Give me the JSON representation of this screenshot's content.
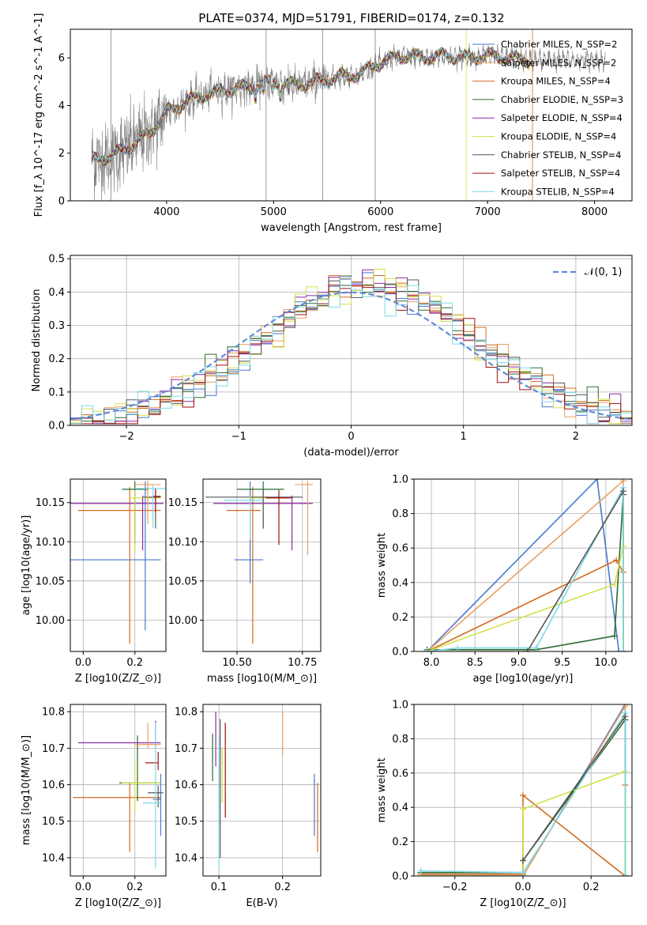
{
  "figure_title": "PLATE=0374, MJD=51791, FIBERID=0174, z=0.132",
  "colors": {
    "data": "#808080",
    "series": [
      "#4878cf",
      "#e8a060",
      "#d2691e",
      "#2e6b2e",
      "#8b2aa8",
      "#d4e04a",
      "#555555",
      "#a01010",
      "#7fd8e8"
    ]
  },
  "chart_data": [
    {
      "id": "spectrum",
      "type": "line",
      "xlabel": "wavelength [Angstrom, rest frame]",
      "ylabel": "Flux [f_λ 10^-17 erg cm^-2 s^-1 A^-1]",
      "xlim": [
        3100,
        8350
      ],
      "ylim": [
        0,
        7.2
      ],
      "xticks": [
        4000,
        5000,
        6000,
        7000,
        8000
      ],
      "yticks": [
        0,
        2,
        4,
        6
      ],
      "grid": false,
      "legend_position": "right",
      "legend": [
        "Chabrier MILES, N_SSP=2",
        "Salpeter MILES, N_SSP=2",
        "Kroupa MILES, N_SSP=4",
        "Chabrier ELODIE, N_SSP=3",
        "Salpeter ELODIE, N_SSP=4",
        "Kroupa ELODIE, N_SSP=4",
        "Chabrier STELIB, N_SSP=4",
        "Salpeter STELIB, N_SSP=4",
        "Kroupa STELIB, N_SSP=4"
      ],
      "model_continuum": {
        "x": [
          3300,
          3500,
          3700,
          3850,
          4000,
          4200,
          4400,
          4600,
          4800,
          5000,
          5200,
          5400,
          5600,
          5800,
          6000,
          6200,
          6400,
          6600,
          6800,
          7000,
          7200,
          7400
        ],
        "y": [
          1.7,
          1.9,
          2.4,
          2.9,
          3.7,
          4.2,
          4.5,
          4.7,
          4.8,
          5.0,
          4.85,
          5.0,
          5.2,
          5.3,
          5.8,
          6.1,
          6.0,
          6.1,
          6.0,
          6.1,
          6.0,
          5.9
        ]
      }
    },
    {
      "id": "residual-histogram",
      "type": "histogram",
      "xlabel": "(data-model)/error",
      "ylabel": "Normed distribution",
      "xlim": [
        -2.5,
        2.5
      ],
      "ylim": [
        0,
        0.51
      ],
      "xticks": [
        -2,
        -1,
        0,
        1,
        2
      ],
      "yticks": [
        0.0,
        0.1,
        0.2,
        0.3,
        0.4,
        0.5
      ],
      "grid": true,
      "legend_position": "top-right",
      "reference_curve": {
        "name": "𝒩(0, 1)",
        "mean": 0,
        "sigma": 1
      },
      "bin_width": 0.1
    },
    {
      "id": "age-vs-Z",
      "type": "scatter",
      "xlabel": "Z [log10(Z/Z_⊙)]",
      "ylabel": "age  [log10(age/yr)]",
      "xlim": [
        -0.05,
        0.32
      ],
      "ylim": [
        9.96,
        10.18
      ],
      "xticks": [
        0.0,
        0.2
      ],
      "yticks": [
        10.0,
        10.05,
        10.1,
        10.15
      ],
      "grid": true,
      "points": [
        {
          "x": 0.24,
          "y": 10.077,
          "xerr": [
            0.3,
            0.06
          ],
          "yerr": [
            0.09,
            0.1
          ],
          "color": 0
        },
        {
          "x": 0.18,
          "y": 10.14,
          "xerr": [
            0.2,
            0.12
          ],
          "yerr": [
            0.17,
            0.03
          ],
          "color": 2
        },
        {
          "x": 0.2,
          "y": 10.167,
          "xerr": [
            0.05,
            0.05
          ],
          "yerr": [
            0.07,
            0.01
          ],
          "color": 3
        },
        {
          "x": 0.23,
          "y": 10.149,
          "xerr": [
            0.28,
            0.08
          ],
          "yerr": [
            0.06,
            0.01
          ],
          "color": 4
        },
        {
          "x": 0.2,
          "y": 10.156,
          "xerr": [
            0.02,
            0.1
          ],
          "yerr": [
            0.07,
            0.01
          ],
          "color": 5
        },
        {
          "x": 0.28,
          "y": 10.157,
          "xerr": [
            0.05,
            0.02
          ],
          "yerr": [
            0.04,
            0.01
          ],
          "color": 6
        },
        {
          "x": 0.28,
          "y": 10.158,
          "xerr": [
            0.01,
            0.02
          ],
          "yerr": [
            0.02,
            0.01
          ],
          "color": 7
        },
        {
          "x": 0.27,
          "y": 10.168,
          "xerr": [
            0.07,
            0.05
          ],
          "yerr": [
            0.05,
            0.005
          ],
          "color": 8
        },
        {
          "x": 0.25,
          "y": 10.173,
          "xerr": [
            0.05,
            0.05
          ],
          "yerr": [
            0.05,
            0.005
          ],
          "color": 1
        }
      ]
    },
    {
      "id": "age-vs-mass",
      "type": "scatter",
      "xlabel": "mass [log10(M/M_⊙)]",
      "ylabel": "",
      "xlim": [
        10.37,
        10.82
      ],
      "ylim": [
        9.96,
        10.18
      ],
      "xticks": [
        10.5,
        10.75
      ],
      "yticks": [
        10.0,
        10.05,
        10.1,
        10.15
      ],
      "grid": true,
      "points": [
        {
          "x": 10.55,
          "y": 10.077,
          "xerr": [
            0.06,
            0.05
          ],
          "yerr": [
            0.03,
            0.1
          ],
          "color": 0
        },
        {
          "x": 10.56,
          "y": 10.14,
          "xerr": [
            0.1,
            0.03
          ],
          "yerr": [
            0.17,
            0.03
          ],
          "color": 2
        },
        {
          "x": 10.6,
          "y": 10.167,
          "xerr": [
            0.1,
            0.08
          ],
          "yerr": [
            0.05,
            0.01
          ],
          "color": 3
        },
        {
          "x": 10.71,
          "y": 10.149,
          "xerr": [
            0.3,
            0.08
          ],
          "yerr": [
            0.06,
            0.01
          ],
          "color": 4
        },
        {
          "x": 10.6,
          "y": 10.156,
          "xerr": [
            0.05,
            0.1
          ],
          "yerr": [
            0.04,
            0.01
          ],
          "color": 5
        },
        {
          "x": 10.6,
          "y": 10.157,
          "xerr": [
            0.22,
            0.15
          ],
          "yerr": [
            0.04,
            0.01
          ],
          "color": 6
        },
        {
          "x": 10.66,
          "y": 10.156,
          "xerr": [
            0.05,
            0.05
          ],
          "yerr": [
            0.06,
            0.01
          ],
          "color": 7
        },
        {
          "x": 10.55,
          "y": 10.153,
          "xerr": [
            0.1,
            0.05
          ],
          "yerr": [
            0.05,
            0.005
          ],
          "color": 8
        },
        {
          "x": 10.77,
          "y": 10.173,
          "xerr": [
            0.05,
            0.02
          ],
          "yerr": [
            0.09,
            0.005
          ],
          "color": 1
        }
      ]
    },
    {
      "id": "mass-weight-vs-age",
      "type": "line",
      "xlabel": "age  [log10(age/yr)]",
      "ylabel": "mass weight",
      "xlim": [
        7.8,
        10.3
      ],
      "ylim": [
        0,
        1
      ],
      "xticks": [
        8.0,
        8.5,
        9.0,
        9.5,
        10.0
      ],
      "yticks": [
        0.0,
        0.2,
        0.4,
        0.6,
        0.8,
        1.0
      ],
      "grid": true,
      "series": [
        {
          "color": 0,
          "x": [
            7.95,
            9.9,
            10.15
          ],
          "y": [
            0.0,
            1.0,
            0.0
          ]
        },
        {
          "color": 1,
          "x": [
            7.95,
            10.2,
            10.2
          ],
          "y": [
            0.0,
            0.99,
            0.0
          ]
        },
        {
          "color": 2,
          "x": [
            7.95,
            10.12,
            10.2,
            10.2
          ],
          "y": [
            0.0,
            0.53,
            0.46,
            0.0
          ]
        },
        {
          "color": 3,
          "x": [
            7.95,
            9.2,
            10.1,
            10.2,
            10.2
          ],
          "y": [
            0.01,
            0.01,
            0.09,
            0.91,
            0.0
          ]
        },
        {
          "color": 5,
          "x": [
            7.95,
            10.1,
            10.2,
            10.2
          ],
          "y": [
            0.0,
            0.39,
            0.61,
            0.0
          ]
        },
        {
          "color": 8,
          "x": [
            7.95,
            8.3,
            9.2,
            10.2,
            10.2
          ],
          "y": [
            0.0,
            0.02,
            0.02,
            0.95,
            0.0
          ]
        },
        {
          "color": 6,
          "x": [
            9.1,
            10.2
          ],
          "y": [
            0.0,
            0.93
          ]
        }
      ]
    },
    {
      "id": "mass-vs-Z",
      "type": "scatter",
      "xlabel": "Z [log10(Z/Z_⊙)]",
      "ylabel": "mass [log10(M/M_⊙)]",
      "xlim": [
        -0.05,
        0.32
      ],
      "ylim": [
        10.35,
        10.82
      ],
      "xticks": [
        0.0,
        0.2
      ],
      "yticks": [
        10.4,
        10.5,
        10.6,
        10.7,
        10.8
      ],
      "grid": true,
      "points": [
        {
          "x": 0.3,
          "y": 10.56,
          "xerr": [
            0.03,
            0.0
          ],
          "yerr": [
            0.1,
            0.07
          ],
          "color": 0
        },
        {
          "x": 0.18,
          "y": 10.565,
          "xerr": [
            0.22,
            0.12
          ],
          "yerr": [
            0.15,
            0.04
          ],
          "color": 2
        },
        {
          "x": 0.21,
          "y": 10.605,
          "xerr": [
            0.07,
            0.09
          ],
          "yerr": [
            0.05,
            0.13
          ],
          "color": 3
        },
        {
          "x": 0.28,
          "y": 10.715,
          "xerr": [
            0.3,
            0.02
          ],
          "yerr": [
            0.01,
            0.06
          ],
          "color": 4
        },
        {
          "x": 0.2,
          "y": 10.605,
          "xerr": [
            0.05,
            0.1
          ],
          "yerr": [
            0.08,
            0.06
          ],
          "color": 5
        },
        {
          "x": 0.29,
          "y": 10.578,
          "xerr": [
            0.04,
            0.02
          ],
          "yerr": [
            0.04,
            0.02
          ],
          "color": 6
        },
        {
          "x": 0.29,
          "y": 10.66,
          "xerr": [
            0.05,
            0.0
          ],
          "yerr": [
            0.02,
            0.03
          ],
          "color": 7
        },
        {
          "x": 0.28,
          "y": 10.55,
          "xerr": [
            0.05,
            0.02
          ],
          "yerr": [
            0.18,
            0.22
          ],
          "color": 8
        },
        {
          "x": 0.25,
          "y": 10.71,
          "xerr": [
            0.05,
            0.05
          ],
          "yerr": [
            0.01,
            0.06
          ],
          "color": 1
        }
      ]
    },
    {
      "id": "mass-vs-EBV",
      "type": "scatter",
      "xlabel": "E(B-V)",
      "ylabel": "",
      "xlim": [
        0.075,
        0.26
      ],
      "ylim": [
        10.35,
        10.82
      ],
      "xticks": [
        0.1,
        0.2
      ],
      "yticks": [
        10.4,
        10.5,
        10.6,
        10.7,
        10.8
      ],
      "grid": true,
      "points": [
        {
          "x": 0.25,
          "y": 10.56,
          "yerr": [
            0.1,
            0.07
          ],
          "color": 0
        },
        {
          "x": 0.255,
          "y": 10.565,
          "yerr": [
            0.15,
            0.04
          ],
          "color": 2
        },
        {
          "x": 0.09,
          "y": 10.67,
          "yerr": [
            0.06,
            0.07
          ],
          "color": 3
        },
        {
          "x": 0.095,
          "y": 10.72,
          "yerr": [
            0.07,
            0.08
          ],
          "color": 4
        },
        {
          "x": 0.105,
          "y": 10.6,
          "yerr": [
            0.05,
            0.1
          ],
          "color": 5
        },
        {
          "x": 0.102,
          "y": 10.6,
          "yerr": [
            0.2,
            0.18
          ],
          "color": 6
        },
        {
          "x": 0.11,
          "y": 10.64,
          "yerr": [
            0.13,
            0.13
          ],
          "color": 7
        },
        {
          "x": 0.1,
          "y": 10.55,
          "yerr": [
            0.18,
            0.18
          ],
          "color": 8
        },
        {
          "x": 0.2,
          "y": 10.74,
          "yerr": [
            0.06,
            0.06
          ],
          "color": 1
        }
      ]
    },
    {
      "id": "mass-weight-vs-Z",
      "type": "line",
      "xlabel": "Z [log10(Z/Z_⊙)]",
      "ylabel": "mass weight",
      "xlim": [
        -0.32,
        0.32
      ],
      "ylim": [
        0,
        1
      ],
      "xticks": [
        -0.2,
        0.0,
        0.2
      ],
      "yticks": [
        0.0,
        0.2,
        0.4,
        0.6,
        0.8,
        1.0
      ],
      "grid": true,
      "series": [
        {
          "color": 0,
          "x": [
            -0.3,
            0.0,
            0.3,
            0.3
          ],
          "y": [
            0.0,
            0.0,
            1.0,
            0.0
          ]
        },
        {
          "color": 1,
          "x": [
            -0.3,
            0.0,
            0.3,
            0.3
          ],
          "y": [
            0.0,
            0.0,
            0.99,
            0.0
          ]
        },
        {
          "color": 2,
          "x": [
            -0.3,
            0.0,
            0.0,
            0.3,
            0.3
          ],
          "y": [
            0.01,
            0.01,
            0.47,
            0.0,
            0.53
          ]
        },
        {
          "color": 3,
          "x": [
            -0.3,
            0.0,
            0.0,
            0.3,
            0.3
          ],
          "y": [
            0.02,
            0.02,
            0.09,
            0.91,
            0.0
          ]
        },
        {
          "color": 5,
          "x": [
            -0.3,
            0.0,
            0.0,
            0.3,
            0.3
          ],
          "y": [
            0.0,
            0.0,
            0.39,
            0.61,
            0.0
          ]
        },
        {
          "color": 8,
          "x": [
            -0.3,
            0.0,
            0.3,
            0.3
          ],
          "y": [
            0.03,
            0.02,
            0.95,
            0.0
          ]
        },
        {
          "color": 6,
          "x": [
            0.0,
            0.3
          ],
          "y": [
            0.09,
            0.93
          ]
        }
      ]
    }
  ]
}
